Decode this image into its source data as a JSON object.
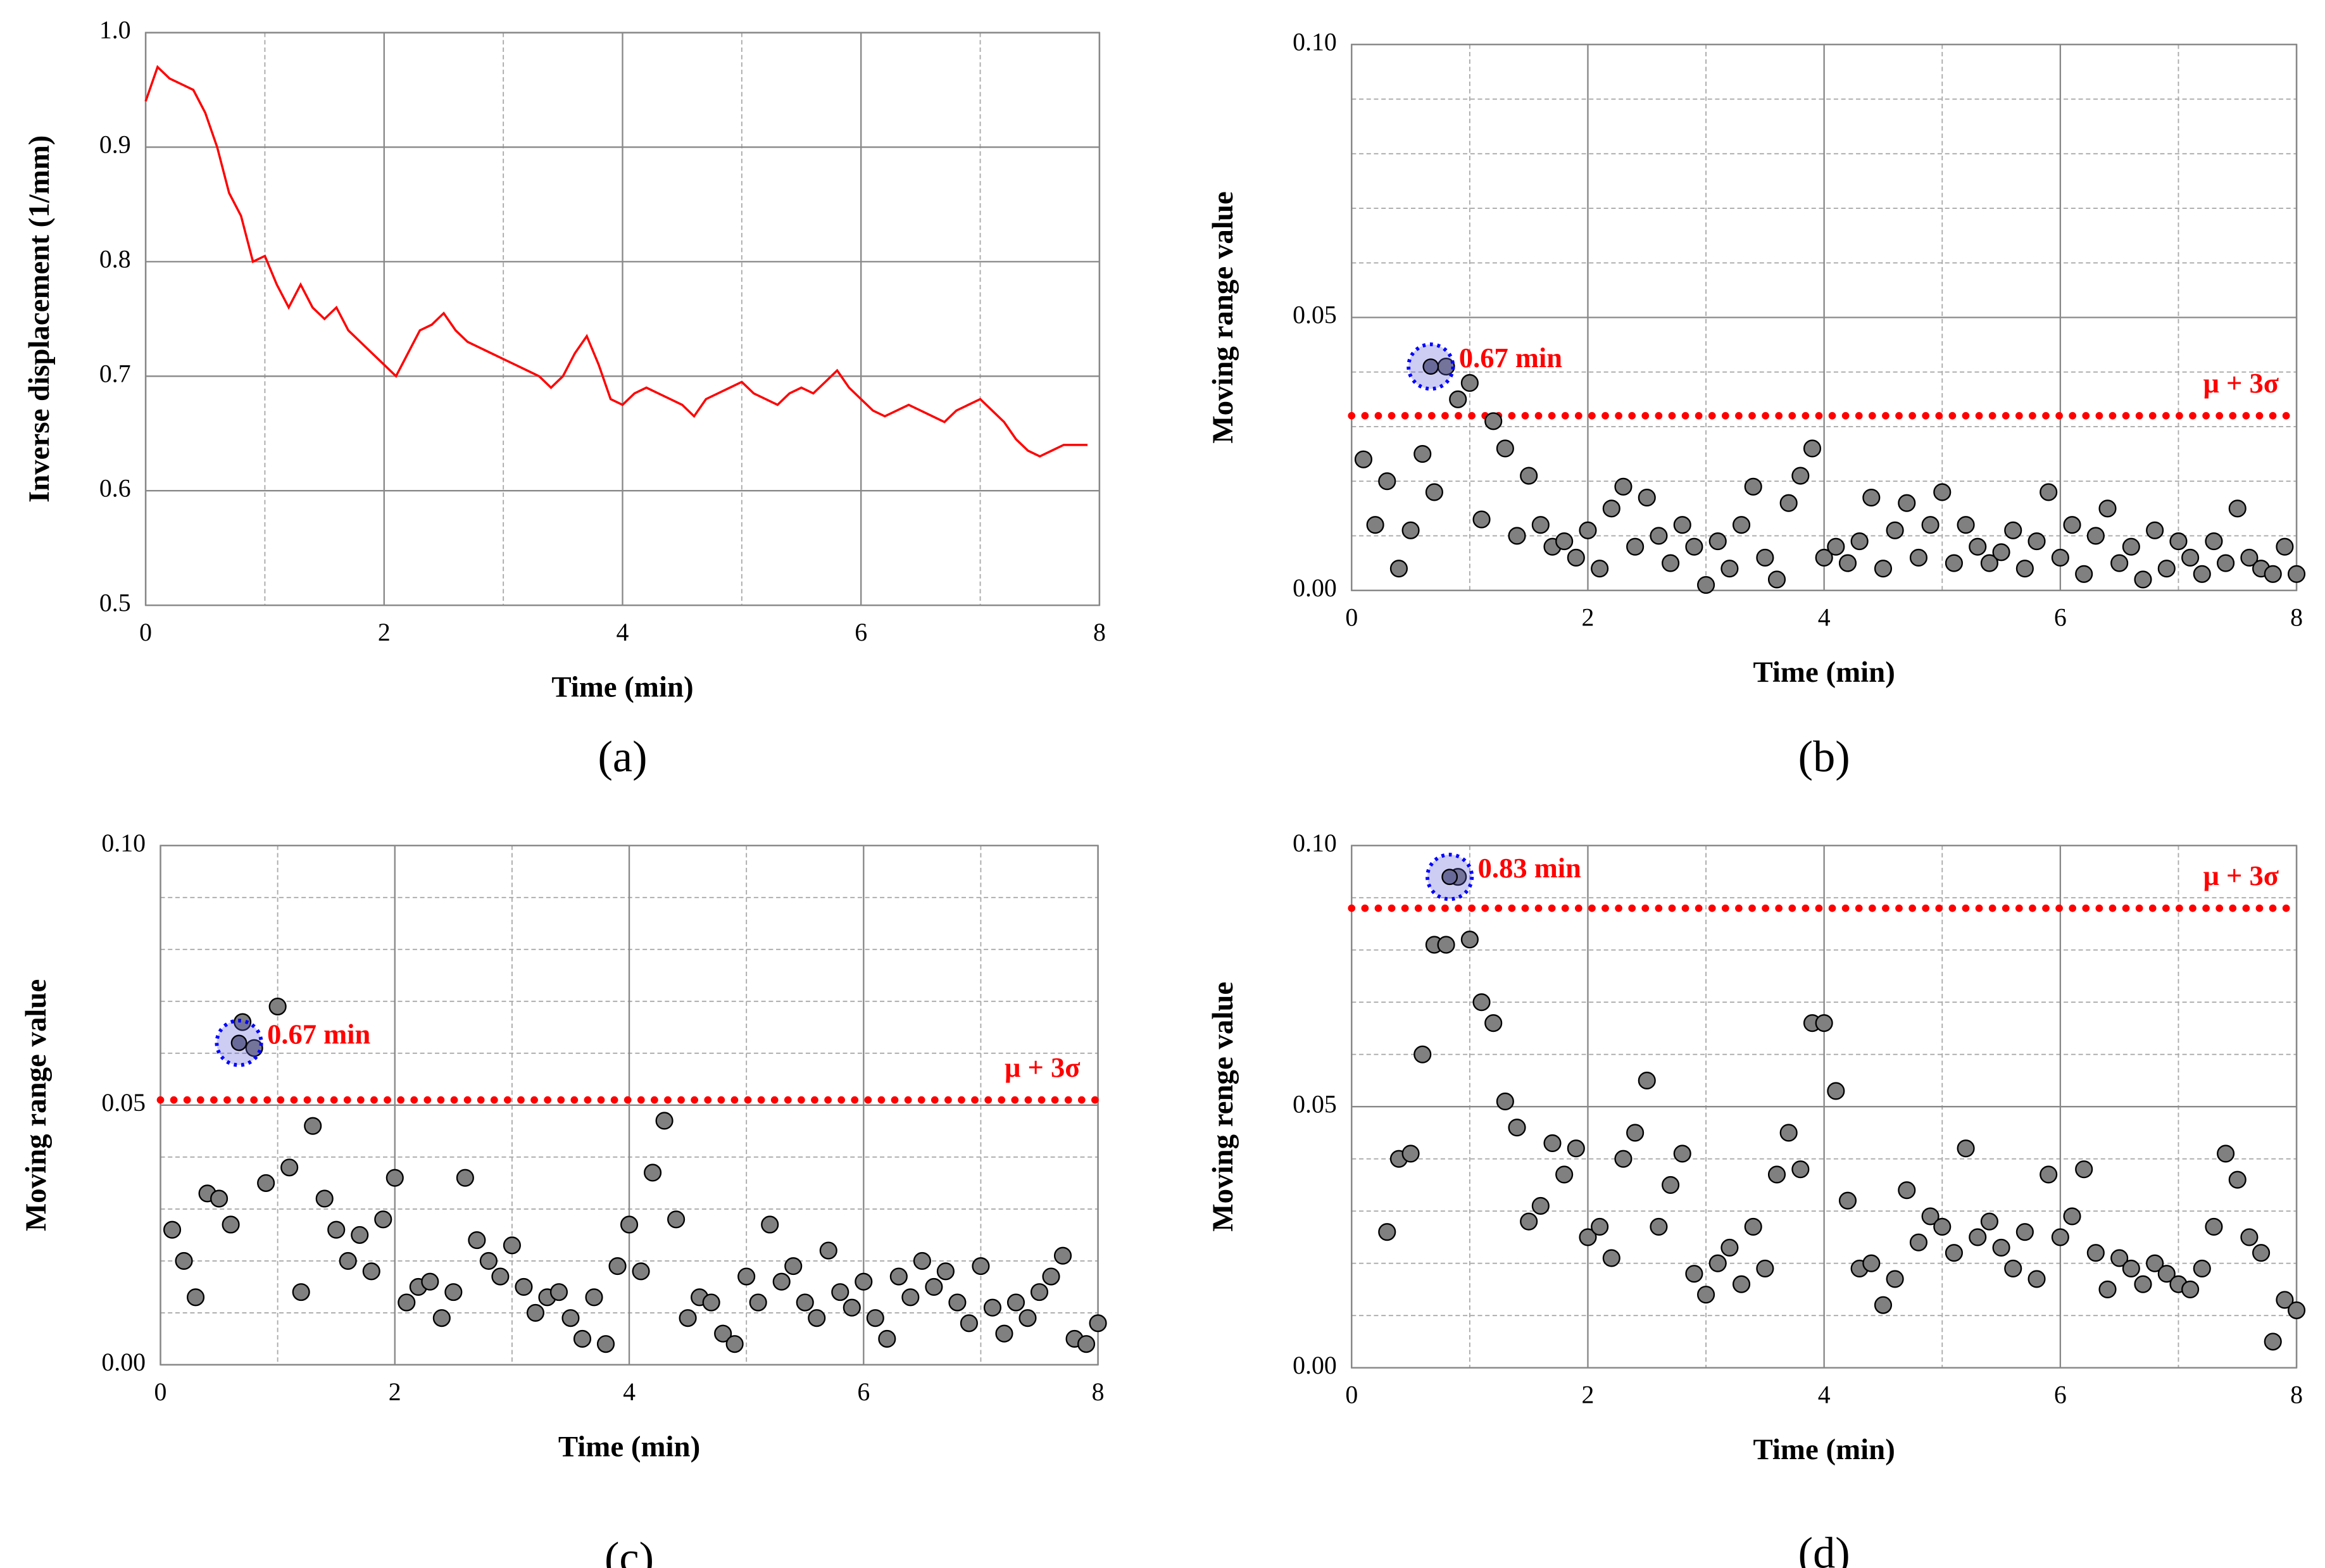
{
  "chart_data": [
    {
      "type": "line",
      "panel_label": "(a)",
      "xlabel": "Time (min)",
      "ylabel": "Inverse displacement (1/mm)",
      "xlim": [
        0,
        8
      ],
      "ylim": [
        0.5,
        1.0
      ],
      "xticks": [
        0,
        2,
        4,
        6,
        8
      ],
      "yticks": [
        {
          "value": 0.5,
          "label": "0.5"
        },
        0.6,
        0.7,
        0.8,
        0.9,
        {
          "value": 1.0,
          "label": "1.0"
        }
      ],
      "minor_xticks": [
        1,
        3,
        5,
        7
      ],
      "minor_yticks": [],
      "x": [
        0,
        0.1,
        0.2,
        0.3,
        0.4,
        0.5,
        0.6,
        0.7,
        0.8,
        0.9,
        1,
        1.1,
        1.2,
        1.3,
        1.4,
        1.5,
        1.6,
        1.7,
        1.8,
        1.9,
        2,
        2.1,
        2.2,
        2.3,
        2.4,
        2.5,
        2.6,
        2.7,
        2.8,
        2.9,
        3,
        3.1,
        3.2,
        3.3,
        3.4,
        3.5,
        3.6,
        3.7,
        3.8,
        3.9,
        4,
        4.1,
        4.2,
        4.3,
        4.4,
        4.5,
        4.6,
        4.7,
        4.8,
        4.9,
        5,
        5.1,
        5.2,
        5.3,
        5.4,
        5.5,
        5.6,
        5.7,
        5.8,
        5.9,
        6,
        6.1,
        6.2,
        6.3,
        6.4,
        6.5,
        6.6,
        6.7,
        6.8,
        6.9,
        7,
        7.1,
        7.2,
        7.3,
        7.4,
        7.5,
        7.6,
        7.7,
        7.8,
        7.9
      ],
      "series": [
        {
          "color": "#ff0000",
          "values": [
            0.94,
            0.97,
            0.96,
            0.955,
            0.95,
            0.93,
            0.9,
            0.86,
            0.84,
            0.8,
            0.805,
            0.78,
            0.76,
            0.78,
            0.76,
            0.75,
            0.76,
            0.74,
            0.73,
            0.72,
            0.71,
            0.7,
            0.72,
            0.74,
            0.745,
            0.755,
            0.74,
            0.73,
            0.725,
            0.72,
            0.715,
            0.71,
            0.705,
            0.7,
            0.69,
            0.7,
            0.72,
            0.735,
            0.71,
            0.68,
            0.675,
            0.685,
            0.69,
            0.685,
            0.68,
            0.675,
            0.665,
            0.68,
            0.685,
            0.69,
            0.695,
            0.685,
            0.68,
            0.675,
            0.685,
            0.69,
            0.685,
            0.695,
            0.705,
            0.69,
            0.68,
            0.67,
            0.665,
            0.67,
            0.675,
            0.67,
            0.665,
            0.66,
            0.67,
            0.675,
            0.68,
            0.67,
            0.66,
            0.645,
            0.635,
            0.63,
            0.635,
            0.64,
            0.64,
            0.64
          ]
        }
      ]
    },
    {
      "type": "scatter",
      "panel_label": "(b)",
      "xlabel": "Time (min)",
      "ylabel": "Moving range value",
      "xlim": [
        0,
        8
      ],
      "ylim": [
        0,
        0.1
      ],
      "xticks": [
        0,
        2,
        4,
        6,
        8
      ],
      "yticks": [
        {
          "value": 0,
          "label": "0.00"
        },
        {
          "value": 0.05,
          "label": "0.05"
        },
        {
          "value": 0.1,
          "label": "0.10"
        }
      ],
      "minor_xticks": [
        1,
        3,
        5,
        7
      ],
      "minor_yticks": [
        0.01,
        0.02,
        0.03,
        0.04,
        0.06,
        0.07,
        0.08,
        0.09
      ],
      "x": [
        0.1,
        0.2,
        0.3,
        0.4,
        0.5,
        0.6,
        0.7,
        0.8,
        0.9,
        1,
        1.1,
        1.2,
        1.3,
        1.4,
        1.5,
        1.6,
        1.7,
        1.8,
        1.9,
        2,
        2.1,
        2.2,
        2.3,
        2.4,
        2.5,
        2.6,
        2.7,
        2.8,
        2.9,
        3,
        3.1,
        3.2,
        3.3,
        3.4,
        3.5,
        3.6,
        3.7,
        3.8,
        3.9,
        4,
        4.1,
        4.2,
        4.3,
        4.4,
        4.5,
        4.6,
        4.7,
        4.8,
        4.9,
        5,
        5.1,
        5.2,
        5.3,
        5.4,
        5.5,
        5.6,
        5.7,
        5.8,
        5.9,
        6,
        6.1,
        6.2,
        6.3,
        6.4,
        6.5,
        6.6,
        6.7,
        6.8,
        6.9,
        7,
        7.1,
        7.2,
        7.3,
        7.4,
        7.5,
        7.6,
        7.7,
        7.8,
        7.9,
        8
      ],
      "series": [
        {
          "color": "#808080",
          "values": [
            0.024,
            0.012,
            0.02,
            0.004,
            0.011,
            0.025,
            0.018,
            0.041,
            0.035,
            0.038,
            0.013,
            0.031,
            0.026,
            0.01,
            0.021,
            0.012,
            0.008,
            0.009,
            0.006,
            0.011,
            0.004,
            0.015,
            0.019,
            0.008,
            0.017,
            0.01,
            0.005,
            0.012,
            0.008,
            0.001,
            0.009,
            0.004,
            0.012,
            0.019,
            0.006,
            0.002,
            0.016,
            0.021,
            0.026,
            0.006,
            0.008,
            0.005,
            0.009,
            0.017,
            0.004,
            0.011,
            0.016,
            0.006,
            0.012,
            0.018,
            0.005,
            0.012,
            0.008,
            0.005,
            0.007,
            0.011,
            0.004,
            0.009,
            0.018,
            0.006,
            0.012,
            0.003,
            0.01,
            0.015,
            0.005,
            0.008,
            0.002,
            0.011,
            0.004,
            0.009,
            0.006,
            0.003,
            0.009,
            0.005,
            0.015,
            0.006,
            0.004,
            0.003,
            0.008,
            0.003
          ]
        }
      ],
      "threshold": {
        "value": 0.032,
        "label": "μ + 3σ",
        "color": "#ff0000"
      },
      "highlight": {
        "x": 0.67,
        "y": 0.041,
        "label": "0.67 min",
        "color": "#0000ff"
      }
    },
    {
      "type": "scatter",
      "panel_label": "(c)",
      "xlabel": "Time (min)",
      "ylabel": "Moving range value",
      "xlim": [
        0,
        8
      ],
      "ylim": [
        0,
        0.1
      ],
      "xticks": [
        0,
        2,
        4,
        6,
        8
      ],
      "yticks": [
        {
          "value": 0,
          "label": "0.00"
        },
        {
          "value": 0.05,
          "label": "0.05"
        },
        {
          "value": 0.1,
          "label": "0.10"
        }
      ],
      "minor_xticks": [
        1,
        3,
        5,
        7
      ],
      "minor_yticks": [
        0.01,
        0.02,
        0.03,
        0.04,
        0.06,
        0.07,
        0.08,
        0.09
      ],
      "x": [
        0.1,
        0.2,
        0.3,
        0.4,
        0.5,
        0.6,
        0.7,
        0.8,
        0.9,
        1,
        1.1,
        1.2,
        1.3,
        1.4,
        1.5,
        1.6,
        1.7,
        1.8,
        1.9,
        2,
        2.1,
        2.2,
        2.3,
        2.4,
        2.5,
        2.6,
        2.7,
        2.8,
        2.9,
        3,
        3.1,
        3.2,
        3.3,
        3.4,
        3.5,
        3.6,
        3.7,
        3.8,
        3.9,
        4,
        4.1,
        4.2,
        4.3,
        4.4,
        4.5,
        4.6,
        4.7,
        4.8,
        4.9,
        5,
        5.1,
        5.2,
        5.3,
        5.4,
        5.5,
        5.6,
        5.7,
        5.8,
        5.9,
        6,
        6.1,
        6.2,
        6.3,
        6.4,
        6.5,
        6.6,
        6.7,
        6.8,
        6.9,
        7,
        7.1,
        7.2,
        7.3,
        7.4,
        7.5,
        7.6,
        7.7,
        7.8,
        7.9,
        8
      ],
      "series": [
        {
          "color": "#808080",
          "values": [
            0.026,
            0.02,
            0.013,
            0.033,
            0.032,
            0.027,
            0.066,
            0.061,
            0.035,
            0.069,
            0.038,
            0.014,
            0.046,
            0.032,
            0.026,
            0.02,
            0.025,
            0.018,
            0.028,
            0.036,
            0.012,
            0.015,
            0.016,
            0.009,
            0.014,
            0.036,
            0.024,
            0.02,
            0.017,
            0.023,
            0.015,
            0.01,
            0.013,
            0.014,
            0.009,
            0.005,
            0.013,
            0.004,
            0.019,
            0.027,
            0.018,
            0.037,
            0.047,
            0.028,
            0.009,
            0.013,
            0.012,
            0.006,
            0.004,
            0.017,
            0.012,
            0.027,
            0.016,
            0.019,
            0.012,
            0.009,
            0.022,
            0.014,
            0.011,
            0.016,
            0.009,
            0.005,
            0.017,
            0.013,
            0.02,
            0.015,
            0.018,
            0.012,
            0.008,
            0.019,
            0.011,
            0.006,
            0.012,
            0.009,
            0.014,
            0.017,
            0.021,
            0.005,
            0.004,
            0.008
          ]
        }
      ],
      "threshold": {
        "value": 0.051,
        "label": "μ + 3σ",
        "color": "#ff0000"
      },
      "highlight": {
        "x": 0.67,
        "y": 0.062,
        "label": "0.67 min",
        "color": "#0000ff"
      }
    },
    {
      "type": "scatter",
      "panel_label": "(d)",
      "xlabel": "Time (min)",
      "ylabel": "Moving renge value",
      "xlim": [
        0,
        8
      ],
      "ylim": [
        0,
        0.1
      ],
      "xticks": [
        0,
        2,
        4,
        6,
        8
      ],
      "yticks": [
        {
          "value": 0,
          "label": "0.00"
        },
        {
          "value": 0.05,
          "label": "0.05"
        },
        {
          "value": 0.1,
          "label": "0.10"
        }
      ],
      "minor_xticks": [
        1,
        3,
        5,
        7
      ],
      "minor_yticks": [
        0.01,
        0.02,
        0.03,
        0.04,
        0.06,
        0.07,
        0.08,
        0.09
      ],
      "x": [
        0.3,
        0.4,
        0.5,
        0.6,
        0.7,
        0.8,
        0.9,
        1,
        1.1,
        1.2,
        1.3,
        1.4,
        1.5,
        1.6,
        1.7,
        1.8,
        1.9,
        2,
        2.1,
        2.2,
        2.3,
        2.4,
        2.5,
        2.6,
        2.7,
        2.8,
        2.9,
        3,
        3.1,
        3.2,
        3.3,
        3.4,
        3.5,
        3.6,
        3.7,
        3.8,
        3.9,
        4,
        4.1,
        4.2,
        4.3,
        4.4,
        4.5,
        4.6,
        4.7,
        4.8,
        4.9,
        5,
        5.1,
        5.2,
        5.3,
        5.4,
        5.5,
        5.6,
        5.7,
        5.8,
        5.9,
        6,
        6.1,
        6.2,
        6.3,
        6.4,
        6.5,
        6.6,
        6.7,
        6.8,
        6.9,
        7,
        7.1,
        7.2,
        7.3,
        7.4,
        7.5,
        7.6,
        7.7,
        7.8,
        7.9,
        8
      ],
      "series": [
        {
          "color": "#808080",
          "values": [
            0.026,
            0.04,
            0.041,
            0.06,
            0.081,
            0.081,
            0.094,
            0.082,
            0.07,
            0.066,
            0.051,
            0.046,
            0.028,
            0.031,
            0.043,
            0.037,
            0.042,
            0.025,
            0.027,
            0.021,
            0.04,
            0.045,
            0.055,
            0.027,
            0.035,
            0.041,
            0.018,
            0.014,
            0.02,
            0.023,
            0.016,
            0.027,
            0.019,
            0.037,
            0.045,
            0.038,
            0.066,
            0.066,
            0.053,
            0.032,
            0.019,
            0.02,
            0.012,
            0.017,
            0.034,
            0.024,
            0.029,
            0.027,
            0.022,
            0.042,
            0.025,
            0.028,
            0.023,
            0.019,
            0.026,
            0.017,
            0.037,
            0.025,
            0.029,
            0.038,
            0.022,
            0.015,
            0.021,
            0.019,
            0.016,
            0.02,
            0.018,
            0.016,
            0.015,
            0.019,
            0.027,
            0.041,
            0.036,
            0.025,
            0.022,
            0.005,
            0.013,
            0.011
          ]
        }
      ],
      "threshold": {
        "value": 0.088,
        "label": "μ + 3σ",
        "color": "#ff0000"
      },
      "highlight": {
        "x": 0.83,
        "y": 0.094,
        "label": "0.83 min",
        "color": "#0000ff"
      }
    }
  ]
}
